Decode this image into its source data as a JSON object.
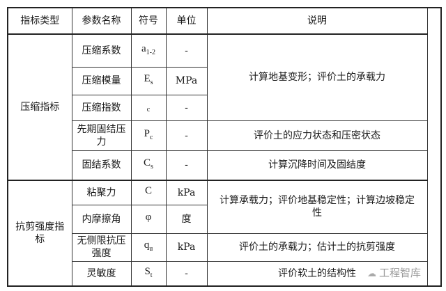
{
  "headers": [
    "指标类型",
    "参数名称",
    "符号",
    "单位",
    "说明"
  ],
  "groups": [
    {
      "type": "压缩指标"
    },
    {
      "type": "抗剪强度指标"
    }
  ],
  "rows": [
    {
      "param": "压缩系数",
      "sym": "a",
      "sub": "1-2",
      "unit": "-"
    },
    {
      "param": "压缩模量",
      "sym": "E",
      "sub": "s",
      "unit": "MPa"
    },
    {
      "param": "压缩指数",
      "sym": "",
      "sub": "c",
      "unit": "-"
    },
    {
      "param": "先期固结压力",
      "sym": "P",
      "sub": "c",
      "unit": "-"
    },
    {
      "param": "固结系数",
      "sym": "C",
      "sub": "s",
      "unit": "-"
    },
    {
      "param": "粘聚力",
      "sym": "C",
      "sub": "",
      "unit": "kPa"
    },
    {
      "param": "内摩擦角",
      "sym": "φ",
      "sub": "",
      "unit": "度"
    },
    {
      "param": "无侧限抗压强度",
      "sym": "q",
      "sub": "u",
      "unit": "kPa"
    },
    {
      "param": "灵敏度",
      "sym": "S",
      "sub": "t",
      "unit": "-"
    }
  ],
  "descriptions": [
    "计算地基变形；评价土的承载力",
    "评价土的应力状态和压密状态",
    "计算沉降时间及固结度",
    "计算承载力；评价地基稳定性；计算边坡稳定性",
    "评价土的承载力；估计土的抗剪强度",
    "评价软土的结构性"
  ],
  "watermark": {
    "text": "工程智库",
    "icon": "wechat-icon"
  }
}
